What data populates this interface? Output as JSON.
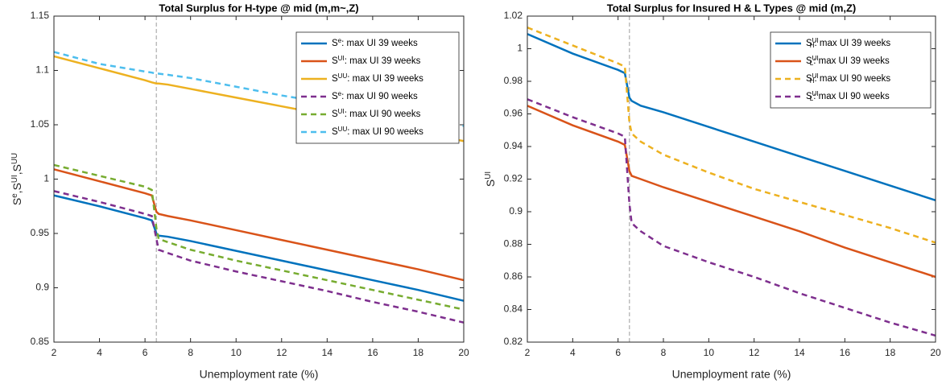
{
  "chart_data": [
    {
      "type": "line",
      "title": "Total Surplus for H-type @ mid (m,m~,Z)",
      "x_label": "Unemployment rate (%)",
      "y_label": "S^{e},S^{UI},S^{UU}",
      "x": [
        2,
        4,
        6,
        6.3,
        6.5,
        6.6,
        7,
        8,
        10,
        12,
        14,
        16,
        18,
        20
      ],
      "xlim": [
        2,
        20
      ],
      "xticks": [
        2,
        4,
        6,
        8,
        10,
        12,
        14,
        16,
        18,
        20
      ],
      "ylim": [
        0.85,
        1.15
      ],
      "yticks": [
        0.85,
        0.9,
        0.95,
        1,
        1.05,
        1.1,
        1.15
      ],
      "vline": 6.5,
      "legend": "upper-right",
      "series": [
        {
          "name": "S^{e}: max UI 39 weeks",
          "color": "#0072bd",
          "dashed": false,
          "values": [
            0.985,
            0.975,
            0.964,
            0.962,
            0.95,
            0.948,
            0.947,
            0.943,
            0.934,
            0.925,
            0.916,
            0.907,
            0.898,
            0.888
          ]
        },
        {
          "name": "S^{UI}: max UI 39 weeks",
          "color": "#d95319",
          "dashed": false,
          "values": [
            1.009,
            0.998,
            0.987,
            0.985,
            0.97,
            0.968,
            0.966,
            0.962,
            0.953,
            0.944,
            0.935,
            0.926,
            0.917,
            0.907
          ]
        },
        {
          "name": "S^{UU}: max UI 39 weeks",
          "color": "#edb120",
          "dashed": false,
          "values": [
            1.113,
            1.102,
            1.091,
            1.089,
            1.088,
            1.088,
            1.087,
            1.083,
            1.075,
            1.067,
            1.059,
            1.051,
            1.043,
            1.035
          ]
        },
        {
          "name": "S^{e}: max UI 90 weeks",
          "color": "#7e2f8e",
          "dashed": true,
          "values": [
            0.989,
            0.979,
            0.968,
            0.966,
            0.945,
            0.935,
            0.932,
            0.925,
            0.915,
            0.906,
            0.897,
            0.887,
            0.878,
            0.868
          ]
        },
        {
          "name": "S^{UI}: max UI 90 weeks",
          "color": "#77ac30",
          "dashed": true,
          "values": [
            1.013,
            1.003,
            0.993,
            0.99,
            0.955,
            0.945,
            0.942,
            0.935,
            0.925,
            0.916,
            0.907,
            0.898,
            0.889,
            0.88
          ]
        },
        {
          "name": "S^{UU}: max UI 90 weeks",
          "color": "#4dbeee",
          "dashed": true,
          "values": [
            1.117,
            1.106,
            1.099,
            1.098,
            1.097,
            1.097,
            1.096,
            1.093,
            1.085,
            1.077,
            1.07,
            1.063,
            1.056,
            1.049
          ]
        }
      ]
    },
    {
      "type": "line",
      "title": "Total Surplus for Insured H & L Types @ mid (m,Z)",
      "x_label": "Unemployment rate (%)",
      "y_label": "S^{UI}",
      "x": [
        2,
        4,
        6,
        6.3,
        6.5,
        6.6,
        7,
        8,
        10,
        12,
        14,
        16,
        18,
        20
      ],
      "xlim": [
        2,
        20
      ],
      "xticks": [
        2,
        4,
        6,
        8,
        10,
        12,
        14,
        16,
        18,
        20
      ],
      "ylim": [
        0.82,
        1.02
      ],
      "yticks": [
        0.82,
        0.84,
        0.86,
        0.88,
        0.9,
        0.92,
        0.94,
        0.96,
        0.98,
        1,
        1.02
      ],
      "vline": 6.5,
      "legend": "upper-right",
      "series": [
        {
          "name": "S^{UI}_{H}: max UI 39 weeks",
          "color": "#0072bd",
          "dashed": false,
          "values": [
            1.009,
            0.997,
            0.987,
            0.985,
            0.97,
            0.968,
            0.965,
            0.961,
            0.952,
            0.943,
            0.934,
            0.925,
            0.916,
            0.907
          ]
        },
        {
          "name": "S^{UI}_{L}: max UI 39 weeks",
          "color": "#d95319",
          "dashed": false,
          "values": [
            0.965,
            0.953,
            0.943,
            0.941,
            0.925,
            0.922,
            0.92,
            0.915,
            0.906,
            0.897,
            0.888,
            0.878,
            0.869,
            0.86
          ]
        },
        {
          "name": "S^{UI}_{H}: max UI 90 weeks",
          "color": "#edb120",
          "dashed": true,
          "values": [
            1.013,
            1.002,
            0.991,
            0.989,
            0.955,
            0.948,
            0.943,
            0.935,
            0.924,
            0.914,
            0.906,
            0.898,
            0.89,
            0.881
          ]
        },
        {
          "name": "S^{UI}_{L}: max UI 90 weeks",
          "color": "#7e2f8e",
          "dashed": true,
          "values": [
            0.969,
            0.958,
            0.948,
            0.946,
            0.905,
            0.893,
            0.888,
            0.879,
            0.869,
            0.86,
            0.85,
            0.841,
            0.832,
            0.824
          ]
        }
      ]
    }
  ]
}
